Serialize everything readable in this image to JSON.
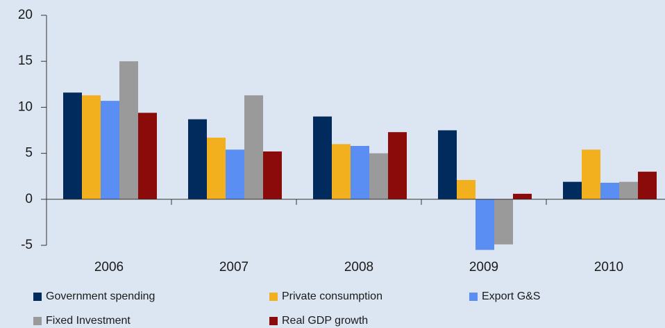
{
  "chart_data": {
    "type": "bar",
    "categories": [
      "2006",
      "2007",
      "2008",
      "2009",
      "2010"
    ],
    "series": [
      {
        "name": "Government spending",
        "color": "#002b5c",
        "values": [
          11.6,
          8.7,
          9.0,
          7.5,
          1.9
        ]
      },
      {
        "name": "Private consumption",
        "color": "#f2b01e",
        "values": [
          11.3,
          6.7,
          6.0,
          2.1,
          5.4
        ]
      },
      {
        "name": "Export G&S",
        "color": "#5b8ef2",
        "values": [
          10.7,
          5.4,
          5.8,
          -5.5,
          1.8
        ]
      },
      {
        "name": "Fixed Investment",
        "color": "#9a9a9a",
        "values": [
          15.0,
          11.3,
          5.0,
          -4.9,
          1.9
        ]
      },
      {
        "name": "Real GDP growth",
        "color": "#8b0a0a",
        "values": [
          9.4,
          5.2,
          7.3,
          0.6,
          3.0
        ]
      }
    ],
    "ylim": [
      -5,
      20
    ],
    "yticks": [
      -5,
      0,
      5,
      10,
      15,
      20
    ],
    "legend": "bottom"
  }
}
